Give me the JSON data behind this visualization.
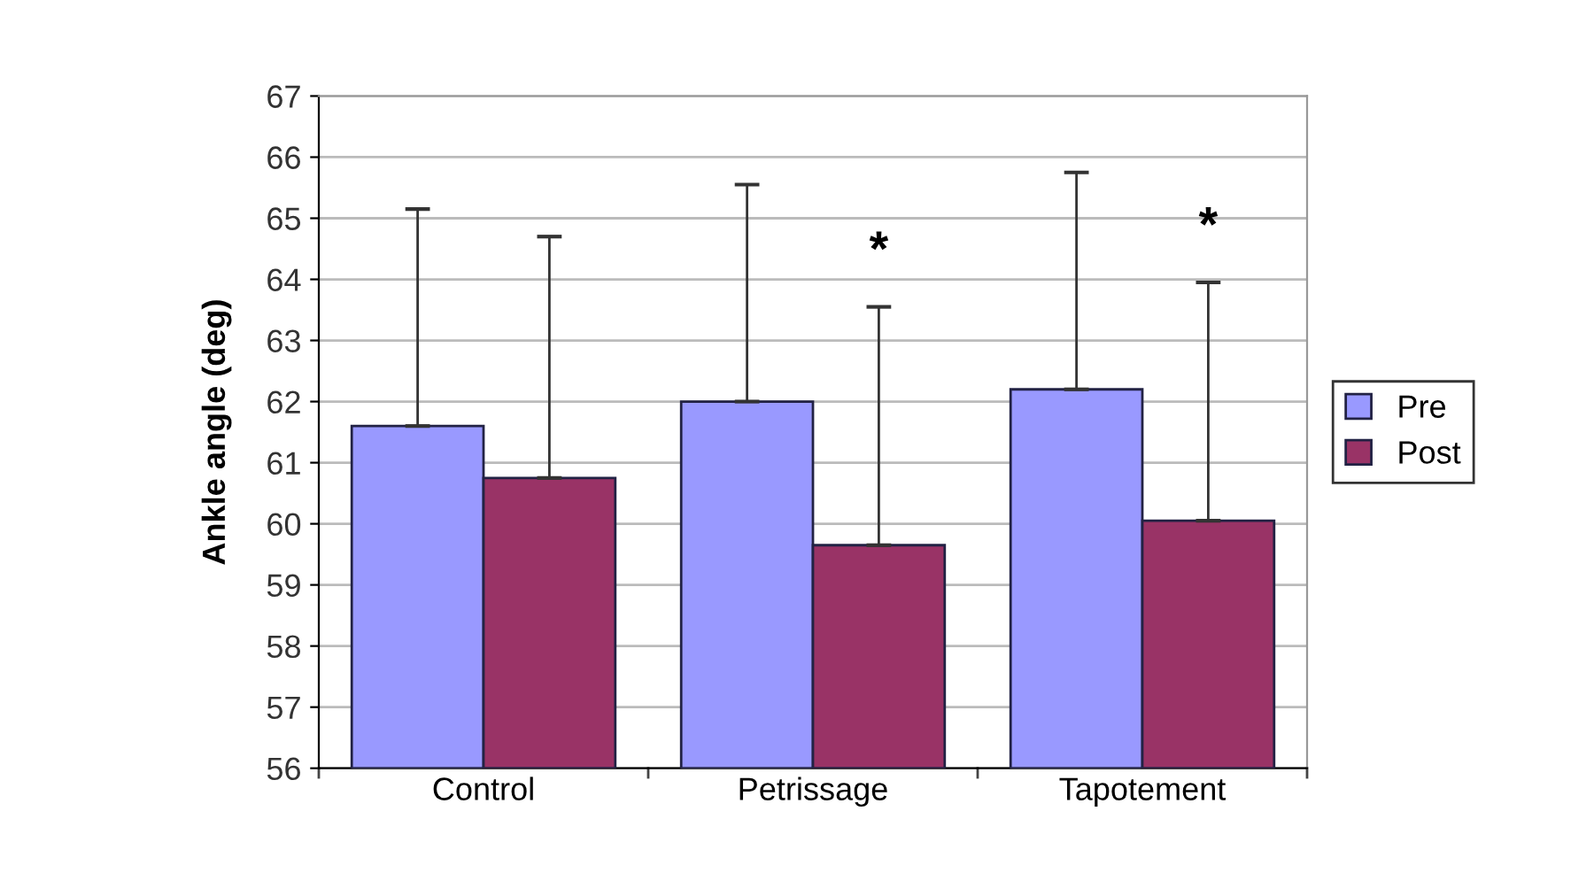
{
  "chart_data": {
    "type": "bar",
    "ylabel": "Ankle angle (deg)",
    "categories": [
      "Control",
      "Petrissage",
      "Tapotement"
    ],
    "series": [
      {
        "name": "Pre",
        "color": "#9999ff",
        "values": [
          61.6,
          62.0,
          62.2
        ],
        "errors": [
          [
            61.6,
            65.15
          ],
          [
            62.0,
            65.55
          ],
          [
            62.2,
            65.75
          ]
        ]
      },
      {
        "name": "Post",
        "color": "#993366",
        "values": [
          60.75,
          59.65,
          60.05
        ],
        "errors": [
          [
            60.75,
            64.7
          ],
          [
            59.65,
            63.55
          ],
          [
            60.05,
            63.95
          ]
        ]
      }
    ],
    "annotations": [
      "*",
      "*"
    ],
    "ylim": [
      56,
      67
    ],
    "yticks": [
      56,
      57,
      58,
      59,
      60,
      61,
      62,
      63,
      64,
      65,
      66,
      67
    ],
    "grid": "y",
    "legend": "right"
  }
}
